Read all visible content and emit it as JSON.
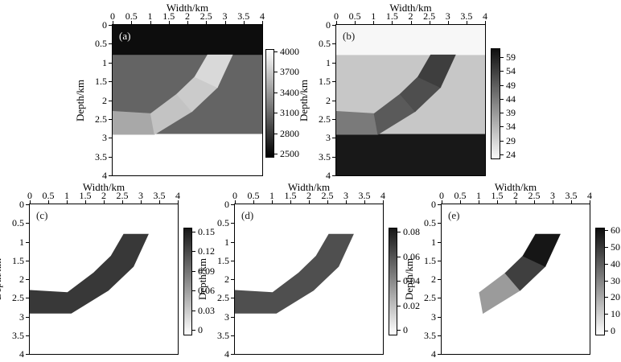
{
  "figure": {
    "x_axis_title": "Width/km",
    "y_axis_title": "Depth/km",
    "x_tick_labels": [
      "0",
      "0.5",
      "1",
      "1.5",
      "2",
      "2.5",
      "3",
      "3.5",
      "4"
    ],
    "y_tick_labels": [
      "0",
      "0.5",
      "1",
      "1.5",
      "2",
      "2.5",
      "3",
      "3.5",
      "4"
    ],
    "panels": [
      {
        "id": "a",
        "label": "(a)",
        "colorbar_labels": [
          "4000",
          "3700",
          "3400",
          "3100",
          "2800",
          "2500"
        ],
        "colors": {
          "layers": [
            "#0d0d0d",
            "#646464",
            "#ffffff"
          ],
          "channel_segments": [
            "#a8a8a8",
            "#c3c3c3",
            "#cbcbcb",
            "#d9d9d9"
          ],
          "colorbar_top": "#ffffff",
          "colorbar_bottom": "#000000",
          "label_color": "#ffffff"
        },
        "channel_render": "segments",
        "background": "layers"
      },
      {
        "id": "b",
        "label": "(b)",
        "colorbar_labels": [
          "59",
          "54",
          "49",
          "44",
          "39",
          "34",
          "29",
          "24"
        ],
        "colors": {
          "layers": [
            "#f7f7f7",
            "#c7c7c7",
            "#181818"
          ],
          "channel_segments": [
            "#7a7a7a",
            "#5a5a5a",
            "#4e4e4e",
            "#3e3e3e"
          ],
          "colorbar_top": "#101010",
          "colorbar_bottom": "#fafafa",
          "label_color": "#1a1a1a"
        },
        "channel_render": "segments",
        "background": "layers"
      },
      {
        "id": "c",
        "label": "(c)",
        "colorbar_labels": [
          "0.15",
          "0.12",
          "0.09",
          "0.06",
          "0.03",
          "0"
        ],
        "colors": {
          "layers": [],
          "channel_segments": [
            "#383838",
            "#383838",
            "#383838",
            "#383838"
          ],
          "colorbar_top": "#161616",
          "colorbar_bottom": "#ffffff",
          "label_color": "#1a1a1a"
        },
        "channel_render": "uniform",
        "background": "white"
      },
      {
        "id": "d",
        "label": "(d)",
        "colorbar_labels": [
          "0.08",
          "0.06",
          "0.04",
          "0.02",
          "0"
        ],
        "colors": {
          "layers": [],
          "channel_segments": [
            "#4f4f4f",
            "#4f4f4f",
            "#4f4f4f",
            "#4f4f4f"
          ],
          "colorbar_top": "#161616",
          "colorbar_bottom": "#ffffff",
          "label_color": "#1a1a1a"
        },
        "channel_render": "uniform",
        "background": "white"
      },
      {
        "id": "e",
        "label": "(e)",
        "colorbar_labels": [
          "60",
          "50",
          "40",
          "30",
          "20",
          "10",
          "0"
        ],
        "colors": {
          "layers": [],
          "channel_segments": [
            "none",
            "#9b9b9b",
            "#3f3f3f",
            "#161616"
          ],
          "colorbar_top": "#0d0d0d",
          "colorbar_bottom": "#ffffff",
          "label_color": "#1a1a1a"
        },
        "channel_render": "segments",
        "background": "white"
      }
    ]
  },
  "geometry_km": {
    "layer_interfaces_depth": [
      0.8,
      2.9
    ],
    "channel_outline": [
      [
        0,
        2.3
      ],
      [
        1.02,
        2.36
      ],
      [
        1.72,
        1.84
      ],
      [
        2.2,
        1.38
      ],
      [
        2.54,
        0.8
      ],
      [
        3.2,
        0.8
      ],
      [
        2.8,
        1.66
      ],
      [
        2.12,
        2.3
      ],
      [
        1.12,
        2.91
      ],
      [
        0,
        2.91
      ]
    ],
    "segment_boundaries": [
      [
        [
          1.02,
          2.36
        ],
        [
          1.12,
          2.91
        ]
      ],
      [
        [
          1.72,
          1.84
        ],
        [
          2.12,
          2.3
        ]
      ],
      [
        [
          2.2,
          1.38
        ],
        [
          2.8,
          1.66
        ]
      ]
    ]
  },
  "chart_data": [
    {
      "type": "heatmap",
      "panel": "(a)",
      "xlabel": "Width/km",
      "ylabel": "Depth/km",
      "x_range_km": [
        0,
        4
      ],
      "depth_range_km": [
        0,
        4
      ],
      "x_ticks": [
        0,
        0.5,
        1,
        1.5,
        2,
        2.5,
        3,
        3.5,
        4
      ],
      "y_ticks": [
        0,
        0.5,
        1,
        1.5,
        2,
        2.5,
        3,
        3.5,
        4
      ],
      "colorbar_ticks": [
        2500,
        2800,
        3100,
        3400,
        3700,
        4000
      ],
      "colorbar_range": [
        2500,
        4000
      ],
      "colormap": "gray: black=2500, white=4000",
      "colorbar_position": "right",
      "grid": false,
      "regions": [
        {
          "name": "top layer",
          "depth_km": [
            0,
            0.8
          ],
          "approx_value": 2500
        },
        {
          "name": "middle layer",
          "depth_km": [
            0.8,
            2.9
          ],
          "approx_value": 3100
        },
        {
          "name": "bottom layer",
          "depth_km": [
            2.9,
            4.0
          ],
          "approx_value": 4000
        },
        {
          "name": "dipping channel segment 1 (x 0-1.1 km, depth 2.3-2.9)",
          "approx_value": 3500
        },
        {
          "name": "dipping channel segment 2 (x 1.0-2.1 km)",
          "approx_value": 3650
        },
        {
          "name": "dipping channel segment 3 (x 1.7-2.8 km)",
          "approx_value": 3700
        },
        {
          "name": "dipping channel segment 4 (x 2.2-3.2 km, reaches depth 0.8)",
          "approx_value": 3800
        }
      ]
    },
    {
      "type": "heatmap",
      "panel": "(b)",
      "xlabel": "Width/km",
      "ylabel": "Depth/km",
      "x_range_km": [
        0,
        4
      ],
      "depth_range_km": [
        0,
        4
      ],
      "x_ticks": [
        0,
        0.5,
        1,
        1.5,
        2,
        2.5,
        3,
        3.5,
        4
      ],
      "y_ticks": [
        0,
        0.5,
        1,
        1.5,
        2,
        2.5,
        3,
        3.5,
        4
      ],
      "colorbar_ticks": [
        24,
        29,
        34,
        39,
        44,
        49,
        54,
        59
      ],
      "colorbar_range": [
        24,
        60
      ],
      "colormap": "gray reversed: white=24, black=60",
      "colorbar_position": "right",
      "grid": false,
      "regions": [
        {
          "name": "top layer",
          "depth_km": [
            0,
            0.8
          ],
          "approx_value": 24
        },
        {
          "name": "middle layer",
          "depth_km": [
            0.8,
            2.9
          ],
          "approx_value": 32
        },
        {
          "name": "bottom layer",
          "depth_km": [
            2.9,
            4.0
          ],
          "approx_value": 58
        },
        {
          "name": "dipping channel segment 1 (x 0-1.1 km)",
          "approx_value": 42
        },
        {
          "name": "dipping channel segment 2 (x 1.0-2.1 km)",
          "approx_value": 46
        },
        {
          "name": "dipping channel segment 3 (x 1.7-2.8 km)",
          "approx_value": 48
        },
        {
          "name": "dipping channel segment 4 (x 2.2-3.2 km)",
          "approx_value": 52
        }
      ]
    },
    {
      "type": "heatmap",
      "panel": "(c)",
      "xlabel": "Width/km",
      "ylabel": "Depth/km",
      "x_range_km": [
        0,
        4
      ],
      "depth_range_km": [
        0,
        4
      ],
      "x_ticks": [
        0,
        0.5,
        1,
        1.5,
        2,
        2.5,
        3,
        3.5,
        4
      ],
      "y_ticks": [
        0,
        0.5,
        1,
        1.5,
        2,
        2.5,
        3,
        3.5,
        4
      ],
      "colorbar_ticks": [
        0,
        0.03,
        0.06,
        0.09,
        0.12,
        0.15
      ],
      "colorbar_range": [
        0,
        0.15
      ],
      "colormap": "gray reversed: white=0, black=0.15",
      "colorbar_position": "right",
      "grid": false,
      "regions": [
        {
          "name": "background",
          "approx_value": 0
        },
        {
          "name": "dipping channel (uniform, x 0-3.2 km, depth 0.8-2.9)",
          "approx_value": 0.13
        }
      ]
    },
    {
      "type": "heatmap",
      "panel": "(d)",
      "xlabel": "Width/km",
      "ylabel": "Depth/km",
      "x_range_km": [
        0,
        4
      ],
      "depth_range_km": [
        0,
        4
      ],
      "x_ticks": [
        0,
        0.5,
        1,
        1.5,
        2,
        2.5,
        3,
        3.5,
        4
      ],
      "y_ticks": [
        0,
        0.5,
        1,
        1.5,
        2,
        2.5,
        3,
        3.5,
        4
      ],
      "colorbar_ticks": [
        0,
        0.02,
        0.04,
        0.06,
        0.08
      ],
      "colorbar_range": [
        0,
        0.08
      ],
      "colormap": "gray reversed: white=0, black=0.08",
      "colorbar_position": "right",
      "grid": false,
      "regions": [
        {
          "name": "background",
          "approx_value": 0
        },
        {
          "name": "dipping channel (uniform, x 0-3.2 km, depth 0.8-2.9)",
          "approx_value": 0.055
        }
      ]
    },
    {
      "type": "heatmap",
      "panel": "(e)",
      "xlabel": "Width/km",
      "ylabel": "Depth/km",
      "x_range_km": [
        0,
        4
      ],
      "depth_range_km": [
        0,
        4
      ],
      "x_ticks": [
        0,
        0.5,
        1,
        1.5,
        2,
        2.5,
        3,
        3.5,
        4
      ],
      "y_ticks": [
        0,
        0.5,
        1,
        1.5,
        2,
        2.5,
        3,
        3.5,
        4
      ],
      "colorbar_ticks": [
        0,
        10,
        20,
        30,
        40,
        50,
        60
      ],
      "colorbar_range": [
        0,
        60
      ],
      "colormap": "gray reversed: white=0, black=60",
      "colorbar_position": "right",
      "grid": false,
      "regions": [
        {
          "name": "background",
          "approx_value": 0
        },
        {
          "name": "channel segment 2 (x 1.0-2.1 km)",
          "approx_value": 25
        },
        {
          "name": "channel segment 3 (x 1.7-2.8 km)",
          "approx_value": 45
        },
        {
          "name": "channel segment 4 (x 2.2-3.2 km)",
          "approx_value": 57
        }
      ]
    }
  ]
}
